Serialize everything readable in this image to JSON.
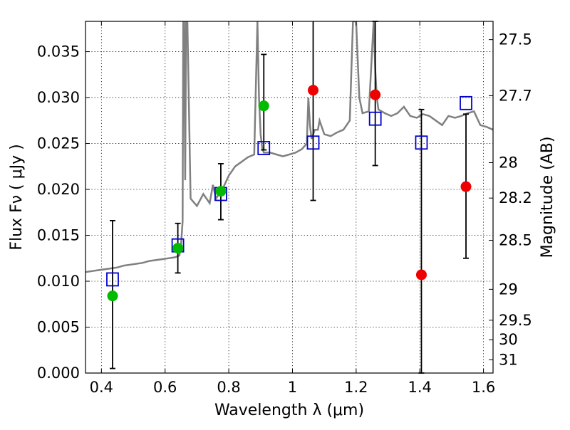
{
  "chart_data": {
    "type": "scatter",
    "xlabel": "Wavelength  λ (μm)",
    "ylabel": "Flux  Fν  ( μJy )",
    "y2label": "Magnitude (AB)",
    "xlim": [
      0.35,
      1.63
    ],
    "ylim": [
      0.0,
      0.0383
    ],
    "grid": true,
    "x_ticks": [
      {
        "value": 0.4,
        "label": "0.4"
      },
      {
        "value": 0.6,
        "label": "0.6"
      },
      {
        "value": 0.8,
        "label": "0.8"
      },
      {
        "value": 1.0,
        "label": "1"
      },
      {
        "value": 1.2,
        "label": "1.2"
      },
      {
        "value": 1.4,
        "label": "1.4"
      },
      {
        "value": 1.6,
        "label": "1.6"
      }
    ],
    "y_ticks": [
      {
        "value": 0.0,
        "label": "0.000"
      },
      {
        "value": 0.005,
        "label": "0.005"
      },
      {
        "value": 0.01,
        "label": "0.010"
      },
      {
        "value": 0.015,
        "label": "0.015"
      },
      {
        "value": 0.02,
        "label": "0.020"
      },
      {
        "value": 0.025,
        "label": "0.025"
      },
      {
        "value": 0.03,
        "label": "0.030"
      },
      {
        "value": 0.035,
        "label": "0.035"
      }
    ],
    "mag_ticks": [
      {
        "mag": 27.5,
        "label": "27.5"
      },
      {
        "mag": 27.7,
        "label": "27.7"
      },
      {
        "mag": 28.0,
        "label": "28"
      },
      {
        "mag": 28.2,
        "label": "28.2"
      },
      {
        "mag": 28.5,
        "label": "28.5"
      },
      {
        "mag": 29.0,
        "label": "29"
      },
      {
        "mag": 29.5,
        "label": "29.5"
      },
      {
        "mag": 30.0,
        "label": "30"
      },
      {
        "mag": 31.0,
        "label": "31"
      }
    ],
    "model_spectrum": {
      "color": "#808080",
      "x": [
        0.35,
        0.37,
        0.39,
        0.41,
        0.43,
        0.45,
        0.47,
        0.49,
        0.51,
        0.53,
        0.55,
        0.57,
        0.59,
        0.61,
        0.63,
        0.645,
        0.65,
        0.655,
        0.657,
        0.66,
        0.663,
        0.666,
        0.67,
        0.68,
        0.7,
        0.72,
        0.74,
        0.75,
        0.76,
        0.78,
        0.8,
        0.82,
        0.84,
        0.86,
        0.88,
        0.89,
        0.895,
        0.9,
        0.905,
        0.91,
        0.93,
        0.95,
        0.97,
        0.99,
        1.01,
        1.03,
        1.045,
        1.05,
        1.055,
        1.06,
        1.07,
        1.08,
        1.085,
        1.09,
        1.1,
        1.12,
        1.14,
        1.16,
        1.18,
        1.19,
        1.2,
        1.21,
        1.22,
        1.24,
        1.255,
        1.26,
        1.265,
        1.27,
        1.29,
        1.31,
        1.33,
        1.35,
        1.37,
        1.39,
        1.41,
        1.43,
        1.45,
        1.47,
        1.49,
        1.51,
        1.53,
        1.55,
        1.57,
        1.59,
        1.61,
        1.63
      ],
      "y": [
        0.011,
        0.0111,
        0.0112,
        0.0113,
        0.0114,
        0.0115,
        0.0117,
        0.0118,
        0.0119,
        0.012,
        0.0122,
        0.0123,
        0.0124,
        0.0125,
        0.0126,
        0.0128,
        0.014,
        0.0165,
        0.0383,
        0.0383,
        0.021,
        0.0383,
        0.0383,
        0.019,
        0.0182,
        0.0195,
        0.0185,
        0.0205,
        0.019,
        0.02,
        0.0215,
        0.0225,
        0.023,
        0.0235,
        0.0238,
        0.0383,
        0.03,
        0.026,
        0.0245,
        0.024,
        0.024,
        0.0238,
        0.0236,
        0.0238,
        0.024,
        0.0244,
        0.025,
        0.03,
        0.027,
        0.0255,
        0.0265,
        0.0265,
        0.0275,
        0.027,
        0.026,
        0.0258,
        0.0262,
        0.0265,
        0.0275,
        0.0383,
        0.0383,
        0.03,
        0.0283,
        0.0285,
        0.0383,
        0.033,
        0.03,
        0.0287,
        0.0283,
        0.028,
        0.0283,
        0.029,
        0.028,
        0.0278,
        0.0282,
        0.028,
        0.0275,
        0.027,
        0.028,
        0.0278,
        0.028,
        0.0283,
        0.0285,
        0.027,
        0.0268,
        0.0265
      ]
    },
    "series": [
      {
        "marker": "open-square",
        "color": "#0000cc",
        "x": [
          0.435,
          0.64,
          0.775,
          0.91,
          1.065,
          1.26,
          1.405,
          1.545
        ],
        "y": [
          0.0102,
          0.0139,
          0.0195,
          0.0245,
          0.0251,
          0.0277,
          0.0251,
          0.0294
        ]
      },
      {
        "marker": "filled-circle",
        "color": "#00bb00",
        "x": [
          0.435,
          0.64,
          0.775,
          0.91
        ],
        "y": [
          0.0084,
          0.0136,
          0.0198,
          0.0291
        ]
      },
      {
        "marker": "filled-circle",
        "color": "#ee0000",
        "x": [
          1.065,
          1.26,
          1.405,
          1.545
        ],
        "y": [
          0.0308,
          0.0303,
          0.0107,
          0.0203
        ]
      }
    ],
    "error_bars": [
      {
        "x": 0.435,
        "low": 0.0005,
        "high": 0.0166
      },
      {
        "x": 0.64,
        "low": 0.0109,
        "high": 0.0163
      },
      {
        "x": 0.775,
        "low": 0.0167,
        "high": 0.0228
      },
      {
        "x": 0.91,
        "low": 0.0243,
        "high": 0.0347
      },
      {
        "x": 1.065,
        "low": 0.0188,
        "high": 0.04
      },
      {
        "x": 1.26,
        "low": 0.0226,
        "high": 0.0383
      },
      {
        "x": 1.405,
        "low": 0.0,
        "high": 0.0287
      },
      {
        "x": 1.545,
        "low": 0.0125,
        "high": 0.0282
      }
    ]
  }
}
